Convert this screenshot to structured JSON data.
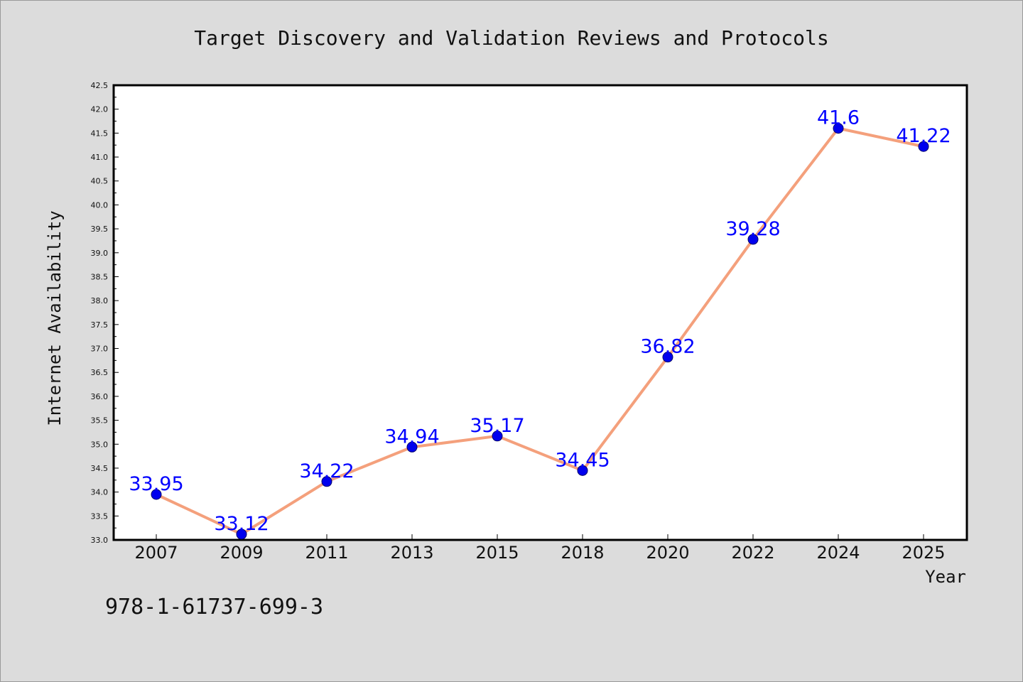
{
  "chart_data": {
    "type": "line",
    "title": "Target Discovery and Validation Reviews and Protocols",
    "xlabel": "Year",
    "ylabel": "Internet Availability",
    "categories": [
      "2007",
      "2009",
      "2011",
      "2013",
      "2015",
      "2018",
      "2020",
      "2022",
      "2024",
      "2025"
    ],
    "series": [
      {
        "values": [
          33.95,
          33.12,
          34.22,
          34.94,
          35.17,
          34.45,
          36.82,
          39.28,
          41.6,
          41.22
        ],
        "data_labels": [
          "33.95",
          "33.12",
          "34.22",
          "34.94",
          "35.17",
          "34.45",
          "36.82",
          "39.28",
          "41.6",
          "41.22"
        ],
        "line_color": "#f4a07c",
        "marker_color": "#0000ee",
        "label_color": "#0000ff"
      }
    ],
    "ylim": [
      33.0,
      42.5
    ],
    "yticks": [
      "33.0",
      "33.5",
      "34.0",
      "34.5",
      "35.0",
      "35.5",
      "36.0",
      "36.5",
      "37.0",
      "37.5",
      "38.0",
      "38.5",
      "39.0",
      "39.5",
      "40.0",
      "40.5",
      "41.0",
      "41.5",
      "42.0",
      "42.5"
    ],
    "grid": false,
    "legend": "none"
  },
  "footnote": "978-1-61737-699-3",
  "colors": {
    "background": "#dcdcdc",
    "plot_background": "#ffffff"
  }
}
